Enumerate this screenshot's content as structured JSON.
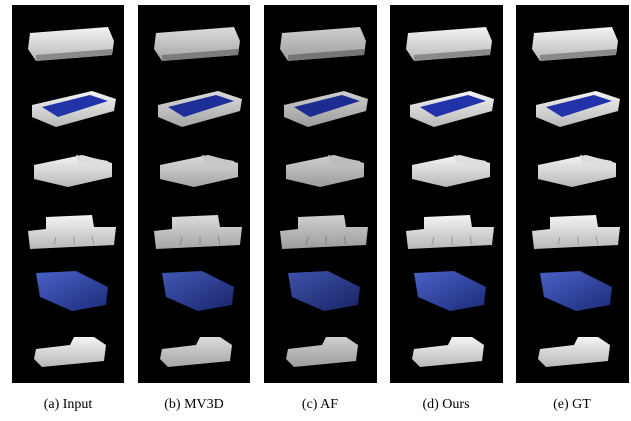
{
  "figure": {
    "captions": [
      "(a) Input",
      "(b) MV3D",
      "(c) AF",
      "(d) Ours",
      "(e) GT"
    ]
  }
}
